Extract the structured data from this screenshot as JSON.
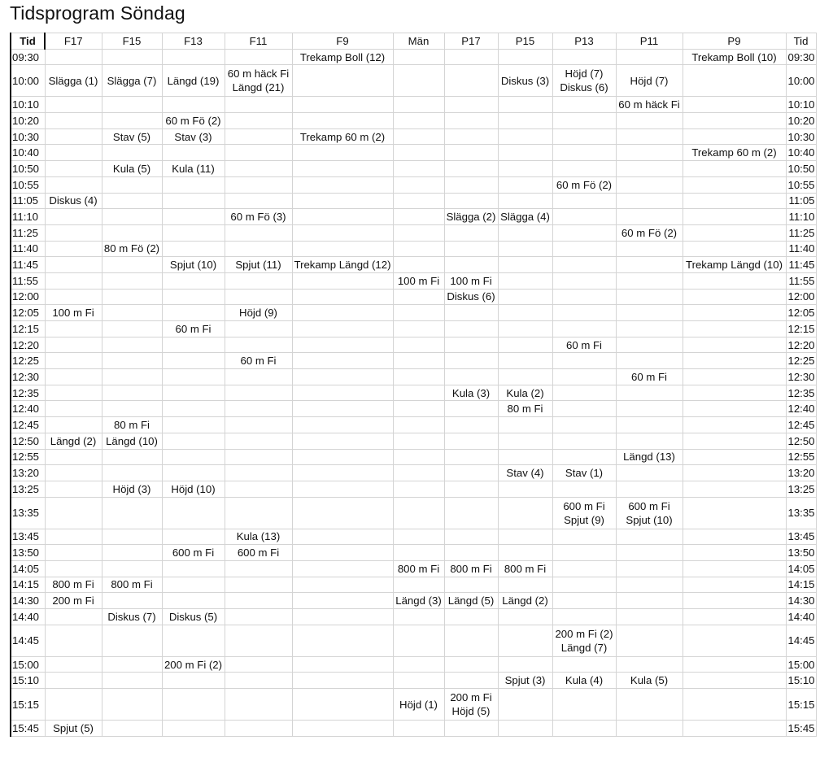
{
  "title": "Tidsprogram Söndag",
  "columns": [
    "Tid",
    "F17",
    "F15",
    "F13",
    "F11",
    "F9",
    "Män",
    "P17",
    "P15",
    "P13",
    "P11",
    "P9",
    "Tid"
  ],
  "rows": [
    {
      "time": "09:30",
      "cells": {
        "F9": [
          "Trekamp Boll (12)"
        ],
        "P9": [
          "Trekamp Boll (10)"
        ]
      }
    },
    {
      "time": "10:00",
      "cells": {
        "F17": [
          "Slägga (1)"
        ],
        "F15": [
          "Slägga (7)"
        ],
        "F13": [
          "Längd (19)"
        ],
        "F11": [
          "60 m häck Fi",
          "Längd (21)"
        ],
        "P15": [
          "Diskus (3)"
        ],
        "P13": [
          "Höjd (7)",
          "Diskus (6)"
        ],
        "P11": [
          "Höjd (7)"
        ]
      }
    },
    {
      "time": "10:10",
      "cells": {
        "P11": [
          "60 m häck Fi"
        ]
      }
    },
    {
      "time": "10:20",
      "cells": {
        "F13": [
          "60 m Fö (2)"
        ]
      }
    },
    {
      "time": "10:30",
      "cells": {
        "F15": [
          "Stav (5)"
        ],
        "F13": [
          "Stav (3)"
        ],
        "F9": [
          "Trekamp 60 m (2)"
        ]
      }
    },
    {
      "time": "10:40",
      "cells": {
        "P9": [
          "Trekamp 60 m (2)"
        ]
      }
    },
    {
      "time": "10:50",
      "cells": {
        "F15": [
          "Kula (5)"
        ],
        "F13": [
          "Kula (11)"
        ]
      }
    },
    {
      "time": "10:55",
      "cells": {
        "P13": [
          "60 m Fö (2)"
        ]
      }
    },
    {
      "time": "11:05",
      "cells": {
        "F17": [
          "Diskus (4)"
        ]
      }
    },
    {
      "time": "11:10",
      "cells": {
        "F11": [
          "60 m Fö (3)"
        ],
        "P17": [
          "Slägga (2)"
        ],
        "P15": [
          "Slägga (4)"
        ]
      }
    },
    {
      "time": "11:25",
      "cells": {
        "P11": [
          "60 m Fö (2)"
        ]
      }
    },
    {
      "time": "11:40",
      "cells": {
        "F15": [
          "80 m Fö (2)"
        ]
      }
    },
    {
      "time": "11:45",
      "cells": {
        "F13": [
          "Spjut (10)"
        ],
        "F11": [
          "Spjut (11)"
        ],
        "F9": [
          "Trekamp Längd (12)"
        ],
        "P9": [
          "Trekamp Längd (10)"
        ]
      }
    },
    {
      "time": "11:55",
      "cells": {
        "Män": [
          "100 m Fi"
        ],
        "P17": [
          "100 m Fi"
        ]
      }
    },
    {
      "time": "12:00",
      "cells": {
        "P17": [
          "Diskus (6)"
        ]
      }
    },
    {
      "time": "12:05",
      "cells": {
        "F17": [
          "100 m Fi"
        ],
        "F11": [
          "Höjd (9)"
        ]
      }
    },
    {
      "time": "12:15",
      "cells": {
        "F13": [
          "60 m Fi"
        ]
      }
    },
    {
      "time": "12:20",
      "cells": {
        "P13": [
          "60 m Fi"
        ]
      }
    },
    {
      "time": "12:25",
      "cells": {
        "F11": [
          "60 m Fi"
        ]
      }
    },
    {
      "time": "12:30",
      "cells": {
        "P11": [
          "60 m Fi"
        ]
      }
    },
    {
      "time": "12:35",
      "cells": {
        "P17": [
          "Kula (3)"
        ],
        "P15": [
          "Kula (2)"
        ]
      }
    },
    {
      "time": "12:40",
      "cells": {
        "P15": [
          "80 m Fi"
        ]
      }
    },
    {
      "time": "12:45",
      "cells": {
        "F15": [
          "80 m Fi"
        ]
      }
    },
    {
      "time": "12:50",
      "cells": {
        "F17": [
          "Längd (2)"
        ],
        "F15": [
          "Längd (10)"
        ]
      }
    },
    {
      "time": "12:55",
      "cells": {
        "P11": [
          "Längd (13)"
        ]
      }
    },
    {
      "time": "13:20",
      "cells": {
        "P15": [
          "Stav (4)"
        ],
        "P13": [
          "Stav (1)"
        ]
      }
    },
    {
      "time": "13:25",
      "cells": {
        "F15": [
          "Höjd (3)"
        ],
        "F13": [
          "Höjd (10)"
        ]
      }
    },
    {
      "time": "13:35",
      "cells": {
        "P13": [
          "600 m Fi",
          "Spjut (9)"
        ],
        "P11": [
          "600 m Fi",
          "Spjut (10)"
        ]
      }
    },
    {
      "time": "13:45",
      "cells": {
        "F11": [
          "Kula (13)"
        ]
      }
    },
    {
      "time": "13:50",
      "cells": {
        "F13": [
          "600 m Fi"
        ],
        "F11": [
          "600 m Fi"
        ]
      }
    },
    {
      "time": "14:05",
      "cells": {
        "Män": [
          "800 m Fi"
        ],
        "P17": [
          "800 m Fi"
        ],
        "P15": [
          "800 m Fi"
        ]
      }
    },
    {
      "time": "14:15",
      "cells": {
        "F17": [
          "800 m Fi"
        ],
        "F15": [
          "800 m Fi"
        ]
      }
    },
    {
      "time": "14:30",
      "cells": {
        "F17": [
          "200 m Fi"
        ],
        "Män": [
          "Längd (3)"
        ],
        "P17": [
          "Längd (5)"
        ],
        "P15": [
          "Längd (2)"
        ]
      }
    },
    {
      "time": "14:40",
      "cells": {
        "F15": [
          "Diskus (7)"
        ],
        "F13": [
          "Diskus (5)"
        ]
      }
    },
    {
      "time": "14:45",
      "cells": {
        "P13": [
          "200 m Fi (2)",
          "Längd (7)"
        ]
      }
    },
    {
      "time": "15:00",
      "cells": {
        "F13": [
          "200 m Fi (2)"
        ]
      }
    },
    {
      "time": "15:10",
      "cells": {
        "P15": [
          "Spjut (3)"
        ],
        "P13": [
          "Kula (4)"
        ],
        "P11": [
          "Kula (5)"
        ]
      }
    },
    {
      "time": "15:15",
      "cells": {
        "Män": [
          "Höjd (1)"
        ],
        "P17": [
          "200 m Fi",
          "Höjd (5)"
        ]
      }
    },
    {
      "time": "15:45",
      "cells": {
        "F17": [
          "Spjut (5)"
        ]
      }
    }
  ]
}
